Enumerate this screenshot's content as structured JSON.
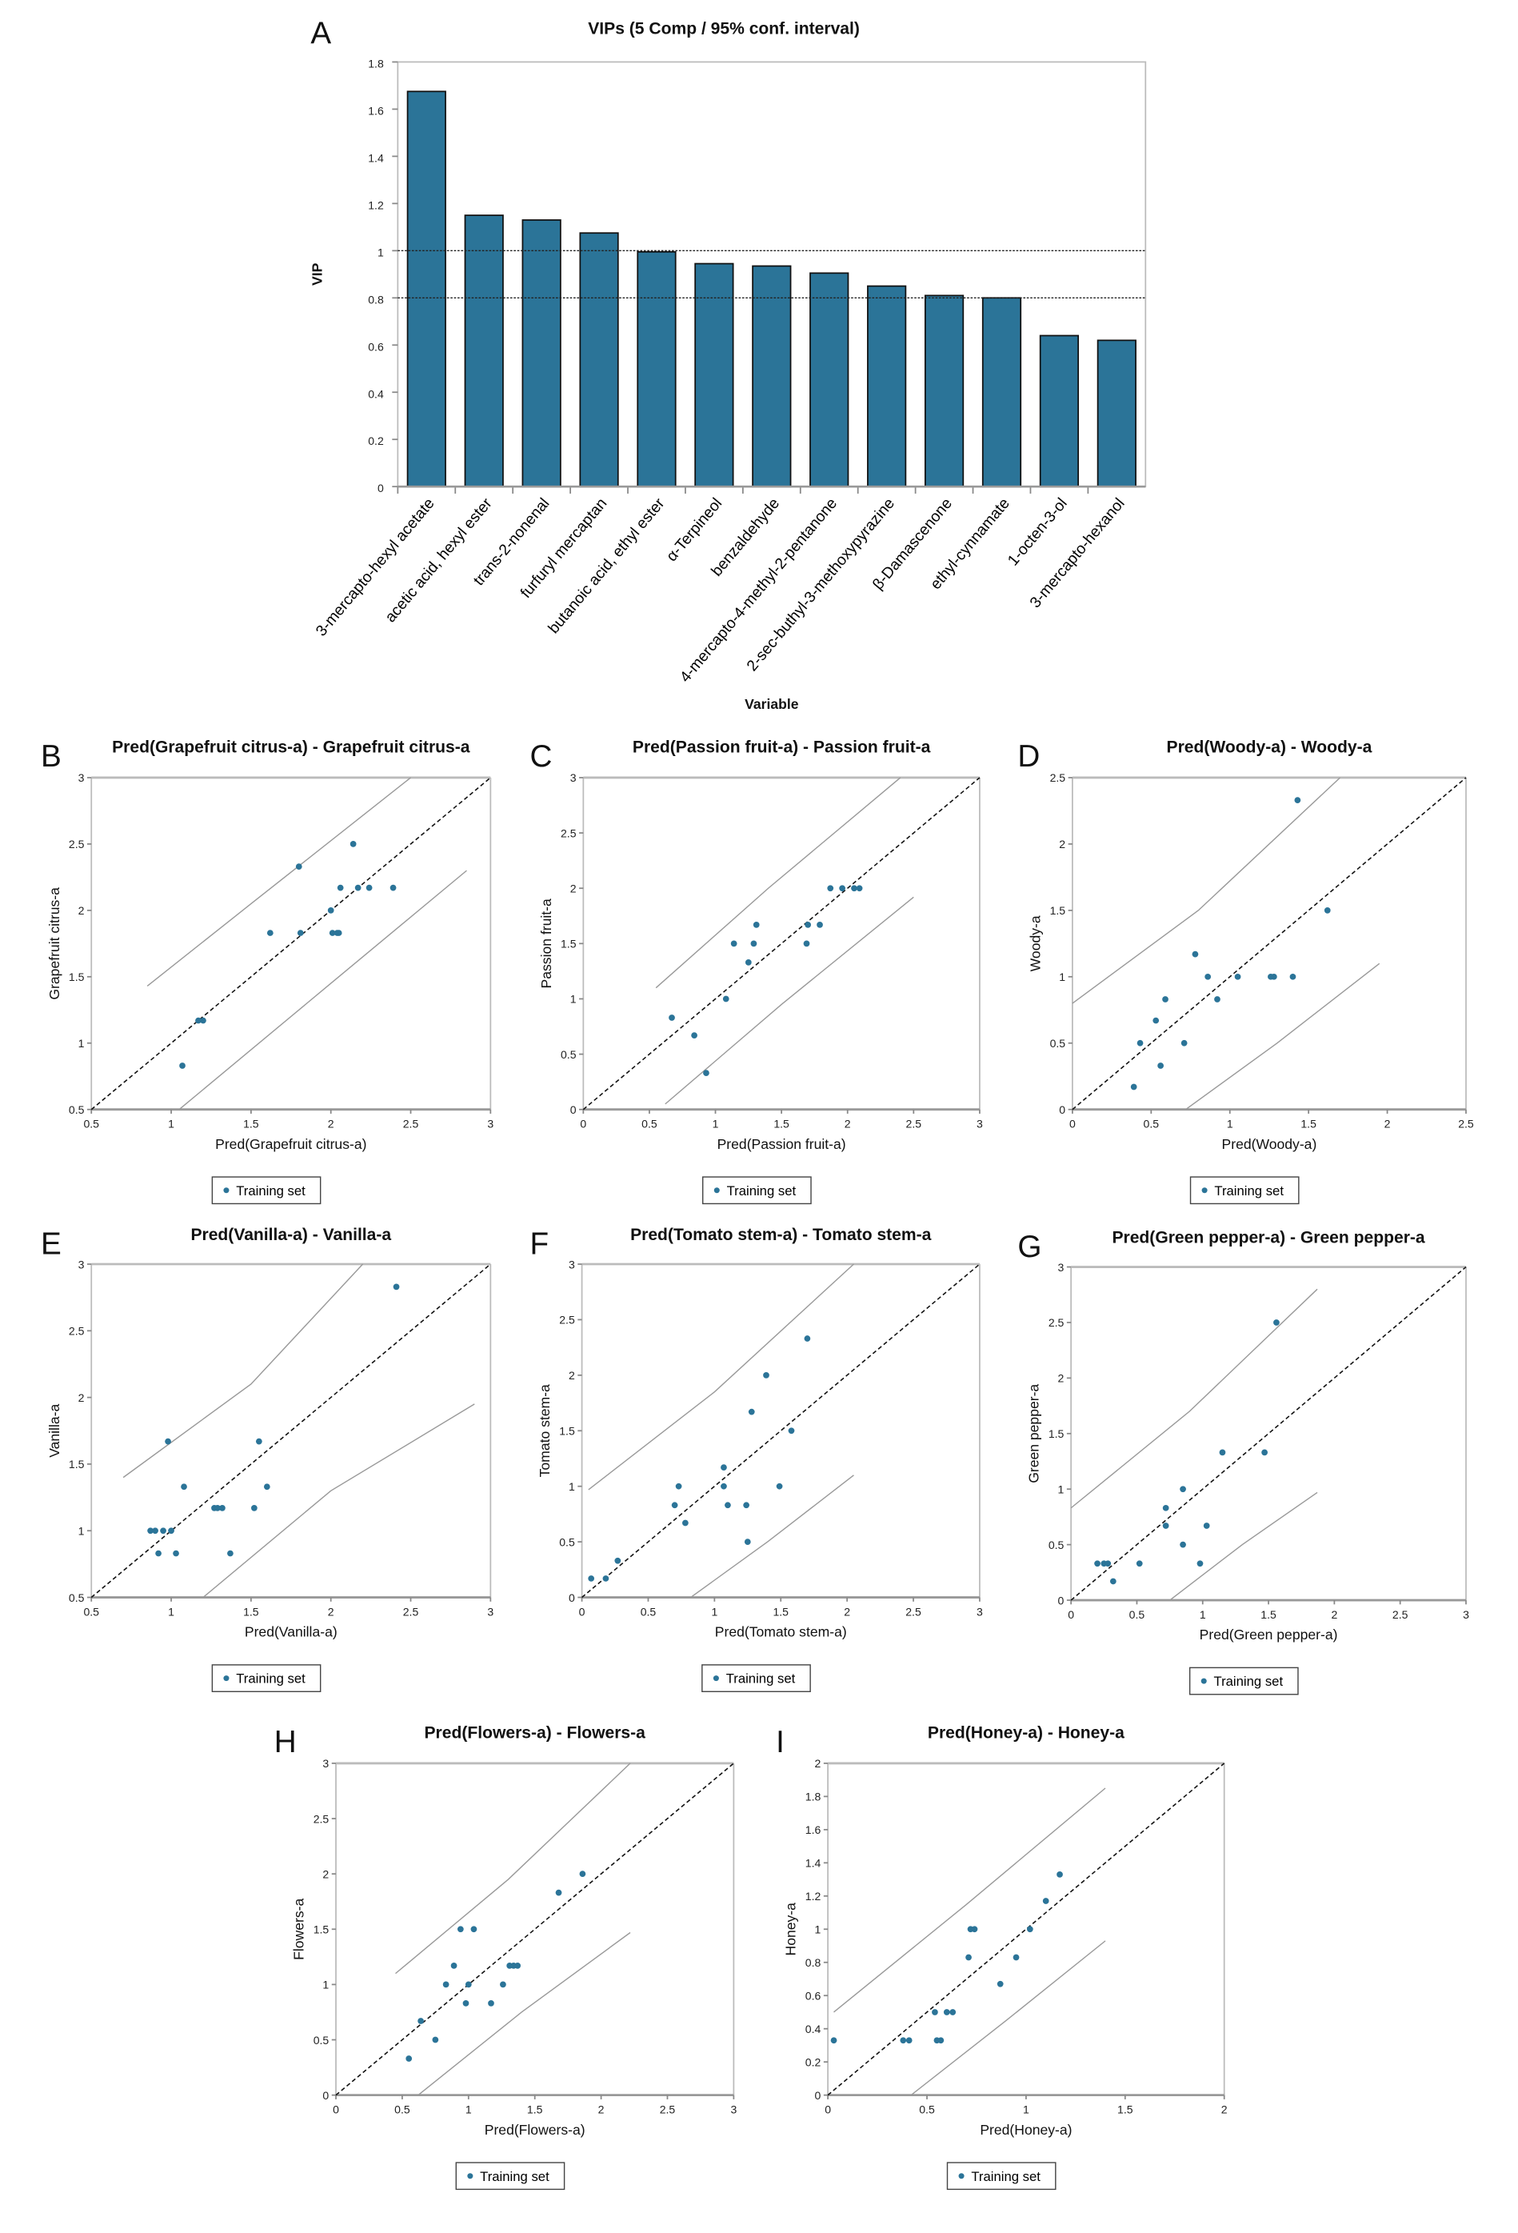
{
  "chart_data": [
    {
      "id": "A",
      "type": "bar",
      "panel_letter": "A",
      "title": "VIPs (5 Comp / 95% conf. interval)",
      "xlabel": "Variable",
      "ylabel": "VIP",
      "ylim": [
        0,
        1.8
      ],
      "yticks": [
        0,
        0.2,
        0.4,
        0.6,
        0.8,
        1,
        1.2,
        1.4,
        1.6,
        1.8
      ],
      "reference_lines": [
        1,
        0.8
      ],
      "categories": [
        "3-mercapto-hexyl acetate",
        "acetic acid, hexyl ester",
        "trans-2-nonenal",
        "furfuryl mercaptan",
        "butanoic acid, ethyl ester",
        "α-Terpineol",
        "benzaldehyde",
        "4-mercapto-4-methyl-2-pentanone",
        "2-sec-buthyl-3-methoxypyrazine",
        "β-Damascenone",
        "ethyl-cynnamate",
        "1-octen-3-ol",
        "3-mercapto-hexanol"
      ],
      "values": [
        1.675,
        1.15,
        1.13,
        1.075,
        0.995,
        0.945,
        0.935,
        0.905,
        0.85,
        0.81,
        0.8,
        0.64,
        0.62
      ],
      "bar_color": "#2b7498"
    },
    {
      "id": "B",
      "type": "scatter",
      "panel_letter": "B",
      "title": "Pred(Grapefruit citrus-a) - Grapefruit citrus-a",
      "xlabel": "Pred(Grapefruit citrus-a)",
      "ylabel": "Grapefruit citrus-a",
      "xlim": [
        0.5,
        3
      ],
      "ylim": [
        0.5,
        3
      ],
      "xticks": [
        0.5,
        1,
        1.5,
        2,
        2.5,
        3
      ],
      "yticks": [
        0.5,
        1,
        1.5,
        2,
        2.5,
        3
      ],
      "legend": "Training set",
      "points": [
        [
          1.07,
          0.83
        ],
        [
          1.17,
          1.17
        ],
        [
          1.2,
          1.17
        ],
        [
          1.62,
          1.83
        ],
        [
          1.8,
          2.33
        ],
        [
          1.81,
          1.83
        ],
        [
          2.0,
          2.0
        ],
        [
          2.01,
          1.83
        ],
        [
          2.04,
          1.83
        ],
        [
          2.05,
          1.83
        ],
        [
          2.06,
          2.17
        ],
        [
          2.14,
          2.5
        ],
        [
          2.17,
          2.17
        ],
        [
          2.24,
          2.17
        ],
        [
          2.39,
          2.17
        ]
      ],
      "upper_band": [
        [
          0.85,
          1.43
        ],
        [
          1.5,
          2.05
        ],
        [
          2.5,
          3.0
        ]
      ],
      "lower_band": [
        [
          1.05,
          0.5
        ],
        [
          2.0,
          1.45
        ],
        [
          2.85,
          2.3
        ]
      ]
    },
    {
      "id": "C",
      "type": "scatter",
      "panel_letter": "C",
      "title": "Pred(Passion fruit-a) - Passion fruit-a",
      "xlabel": "Pred(Passion fruit-a)",
      "ylabel": "Passion fruit-a",
      "xlim": [
        0,
        3
      ],
      "ylim": [
        0,
        3
      ],
      "xticks": [
        0,
        0.5,
        1,
        1.5,
        2,
        2.5,
        3
      ],
      "yticks": [
        0,
        0.5,
        1,
        1.5,
        2,
        2.5,
        3
      ],
      "legend": "Training set",
      "points": [
        [
          0.67,
          0.83
        ],
        [
          0.84,
          0.67
        ],
        [
          0.93,
          0.33
        ],
        [
          1.08,
          1.0
        ],
        [
          1.14,
          1.5
        ],
        [
          1.25,
          1.33
        ],
        [
          1.29,
          1.5
        ],
        [
          1.31,
          1.67
        ],
        [
          1.69,
          1.5
        ],
        [
          1.7,
          1.67
        ],
        [
          1.79,
          1.67
        ],
        [
          1.87,
          2.0
        ],
        [
          1.96,
          2.0
        ],
        [
          2.05,
          2.0
        ],
        [
          2.09,
          2.0
        ]
      ],
      "upper_band": [
        [
          0.55,
          1.1
        ],
        [
          1.4,
          2.0
        ],
        [
          2.4,
          3.0
        ]
      ],
      "lower_band": [
        [
          0.62,
          0.05
        ],
        [
          1.5,
          0.95
        ],
        [
          2.5,
          1.92
        ]
      ]
    },
    {
      "id": "D",
      "type": "scatter",
      "panel_letter": "D",
      "title": "Pred(Woody-a) - Woody-a",
      "xlabel": "Pred(Woody-a)",
      "ylabel": "Woody-a",
      "xlim": [
        0,
        2.5
      ],
      "ylim": [
        0,
        2.5
      ],
      "xticks": [
        0,
        0.5,
        1,
        1.5,
        2,
        2.5
      ],
      "yticks": [
        0,
        0.5,
        1,
        1.5,
        2,
        2.5
      ],
      "legend": "Training set",
      "points": [
        [
          0.39,
          0.17
        ],
        [
          0.43,
          0.5
        ],
        [
          0.53,
          0.67
        ],
        [
          0.56,
          0.33
        ],
        [
          0.59,
          0.83
        ],
        [
          0.71,
          0.5
        ],
        [
          0.78,
          1.17
        ],
        [
          0.86,
          1.0
        ],
        [
          0.92,
          0.83
        ],
        [
          1.05,
          1.0
        ],
        [
          1.26,
          1.0
        ],
        [
          1.28,
          1.0
        ],
        [
          1.4,
          1.0
        ],
        [
          1.43,
          2.33
        ],
        [
          1.62,
          1.5
        ]
      ],
      "upper_band": [
        [
          0,
          0.8
        ],
        [
          0.8,
          1.5
        ],
        [
          1.7,
          2.5
        ]
      ],
      "lower_band": [
        [
          0.72,
          0
        ],
        [
          1.3,
          0.5
        ],
        [
          1.95,
          1.1
        ]
      ]
    },
    {
      "id": "E",
      "type": "scatter",
      "panel_letter": "E",
      "title": "Pred(Vanilla-a) - Vanilla-a",
      "xlabel": "Pred(Vanilla-a)",
      "ylabel": "Vanilla-a",
      "xlim": [
        0.5,
        3
      ],
      "ylim": [
        0.5,
        3
      ],
      "xticks": [
        0.5,
        1,
        1.5,
        2,
        2.5,
        3
      ],
      "yticks": [
        0.5,
        1,
        1.5,
        2,
        2.5,
        3
      ],
      "legend": "Training set",
      "points": [
        [
          0.87,
          1.0
        ],
        [
          0.9,
          1.0
        ],
        [
          0.92,
          0.83
        ],
        [
          0.95,
          1.0
        ],
        [
          0.98,
          1.67
        ],
        [
          1.0,
          1.0
        ],
        [
          1.03,
          0.83
        ],
        [
          1.08,
          1.33
        ],
        [
          1.27,
          1.17
        ],
        [
          1.29,
          1.17
        ],
        [
          1.32,
          1.17
        ],
        [
          1.37,
          0.83
        ],
        [
          1.52,
          1.17
        ],
        [
          1.55,
          1.67
        ],
        [
          1.6,
          1.33
        ],
        [
          2.41,
          2.83
        ]
      ],
      "upper_band": [
        [
          0.7,
          1.4
        ],
        [
          1.5,
          2.1
        ],
        [
          2.2,
          3.0
        ]
      ],
      "lower_band": [
        [
          1.2,
          0.5
        ],
        [
          2.0,
          1.3
        ],
        [
          2.9,
          1.95
        ]
      ]
    },
    {
      "id": "F",
      "type": "scatter",
      "panel_letter": "F",
      "title": "Pred(Tomato stem-a) - Tomato stem-a",
      "xlabel": "Pred(Tomato stem-a)",
      "ylabel": "Tomato stem-a",
      "xlim": [
        0,
        3
      ],
      "ylim": [
        0,
        3
      ],
      "xticks": [
        0,
        0.5,
        1,
        1.5,
        2,
        2.5,
        3
      ],
      "yticks": [
        0,
        0.5,
        1,
        1.5,
        2,
        2.5,
        3
      ],
      "legend": "Training set",
      "points": [
        [
          0.07,
          0.17
        ],
        [
          0.18,
          0.17
        ],
        [
          0.27,
          0.33
        ],
        [
          0.7,
          0.83
        ],
        [
          0.73,
          1.0
        ],
        [
          0.78,
          0.67
        ],
        [
          1.07,
          1.17
        ],
        [
          1.07,
          1.0
        ],
        [
          1.1,
          0.83
        ],
        [
          1.24,
          0.83
        ],
        [
          1.25,
          0.5
        ],
        [
          1.28,
          1.67
        ],
        [
          1.39,
          2.0
        ],
        [
          1.49,
          1.0
        ],
        [
          1.58,
          1.5
        ],
        [
          1.7,
          2.33
        ]
      ],
      "upper_band": [
        [
          0.05,
          0.97
        ],
        [
          1.0,
          1.85
        ],
        [
          2.05,
          3.0
        ]
      ],
      "lower_band": [
        [
          0.82,
          0
        ],
        [
          1.4,
          0.5
        ],
        [
          2.05,
          1.1
        ]
      ]
    },
    {
      "id": "G",
      "type": "scatter",
      "panel_letter": "G",
      "title": "Pred(Green pepper-a) - Green pepper-a",
      "xlabel": "Pred(Green pepper-a)",
      "ylabel": "Green pepper-a",
      "xlim": [
        0,
        3
      ],
      "ylim": [
        0,
        3
      ],
      "xticks": [
        0,
        0.5,
        1,
        1.5,
        2,
        2.5,
        3
      ],
      "yticks": [
        0,
        0.5,
        1,
        1.5,
        2,
        2.5,
        3
      ],
      "legend": "Training set",
      "points": [
        [
          0.2,
          0.33
        ],
        [
          0.25,
          0.33
        ],
        [
          0.28,
          0.33
        ],
        [
          0.32,
          0.17
        ],
        [
          0.52,
          0.33
        ],
        [
          0.72,
          0.67
        ],
        [
          0.72,
          0.83
        ],
        [
          0.85,
          1.0
        ],
        [
          0.85,
          0.5
        ],
        [
          0.98,
          0.33
        ],
        [
          1.03,
          0.67
        ],
        [
          1.15,
          1.33
        ],
        [
          1.47,
          1.33
        ],
        [
          1.56,
          2.5
        ]
      ],
      "upper_band": [
        [
          0,
          0.83
        ],
        [
          0.9,
          1.7
        ],
        [
          1.87,
          2.8
        ]
      ],
      "lower_band": [
        [
          0.75,
          0
        ],
        [
          1.3,
          0.5
        ],
        [
          1.87,
          0.97
        ]
      ]
    },
    {
      "id": "H",
      "type": "scatter",
      "panel_letter": "H",
      "title": "Pred(Flowers-a) - Flowers-a",
      "xlabel": "Pred(Flowers-a)",
      "ylabel": "Flowers-a",
      "xlim": [
        0,
        3
      ],
      "ylim": [
        0,
        3
      ],
      "xticks": [
        0,
        0.5,
        1,
        1.5,
        2,
        2.5,
        3
      ],
      "yticks": [
        0,
        0.5,
        1,
        1.5,
        2,
        2.5,
        3
      ],
      "legend": "Training set",
      "points": [
        [
          0.55,
          0.33
        ],
        [
          0.64,
          0.67
        ],
        [
          0.75,
          0.5
        ],
        [
          0.83,
          1.0
        ],
        [
          0.89,
          1.17
        ],
        [
          0.94,
          1.5
        ],
        [
          0.98,
          0.83
        ],
        [
          1.0,
          1.0
        ],
        [
          1.04,
          1.5
        ],
        [
          1.17,
          0.83
        ],
        [
          1.26,
          1.0
        ],
        [
          1.31,
          1.17
        ],
        [
          1.34,
          1.17
        ],
        [
          1.37,
          1.17
        ],
        [
          1.68,
          1.83
        ],
        [
          1.86,
          2.0
        ]
      ],
      "upper_band": [
        [
          0.45,
          1.1
        ],
        [
          1.3,
          1.95
        ],
        [
          2.22,
          3.0
        ]
      ],
      "lower_band": [
        [
          0.62,
          0
        ],
        [
          1.4,
          0.75
        ],
        [
          2.22,
          1.47
        ]
      ]
    },
    {
      "id": "I",
      "type": "scatter",
      "panel_letter": "I",
      "title": "Pred(Honey-a) - Honey-a",
      "xlabel": "Pred(Honey-a)",
      "ylabel": "Honey-a",
      "xlim": [
        0,
        2
      ],
      "ylim": [
        0,
        2
      ],
      "xticks": [
        0,
        0.5,
        1,
        1.5,
        2
      ],
      "yticks": [
        0,
        0.2,
        0.4,
        0.6,
        0.8,
        1,
        1.2,
        1.4,
        1.6,
        1.8,
        2
      ],
      "legend": "Training set",
      "points": [
        [
          0.03,
          0.33
        ],
        [
          0.38,
          0.33
        ],
        [
          0.41,
          0.33
        ],
        [
          0.54,
          0.5
        ],
        [
          0.55,
          0.33
        ],
        [
          0.57,
          0.33
        ],
        [
          0.6,
          0.5
        ],
        [
          0.63,
          0.5
        ],
        [
          0.71,
          0.83
        ],
        [
          0.72,
          1.0
        ],
        [
          0.74,
          1.0
        ],
        [
          0.87,
          0.67
        ],
        [
          0.95,
          0.83
        ],
        [
          1.02,
          1.0
        ],
        [
          1.1,
          1.17
        ],
        [
          1.17,
          1.33
        ]
      ],
      "upper_band": [
        [
          0.03,
          0.5
        ],
        [
          0.7,
          1.15
        ],
        [
          1.4,
          1.85
        ]
      ],
      "lower_band": [
        [
          0.42,
          0
        ],
        [
          0.9,
          0.45
        ],
        [
          1.4,
          0.93
        ]
      ]
    }
  ],
  "colors": {
    "point": "#2b7498",
    "band": "#999999",
    "frame": "#bbbbbb"
  }
}
